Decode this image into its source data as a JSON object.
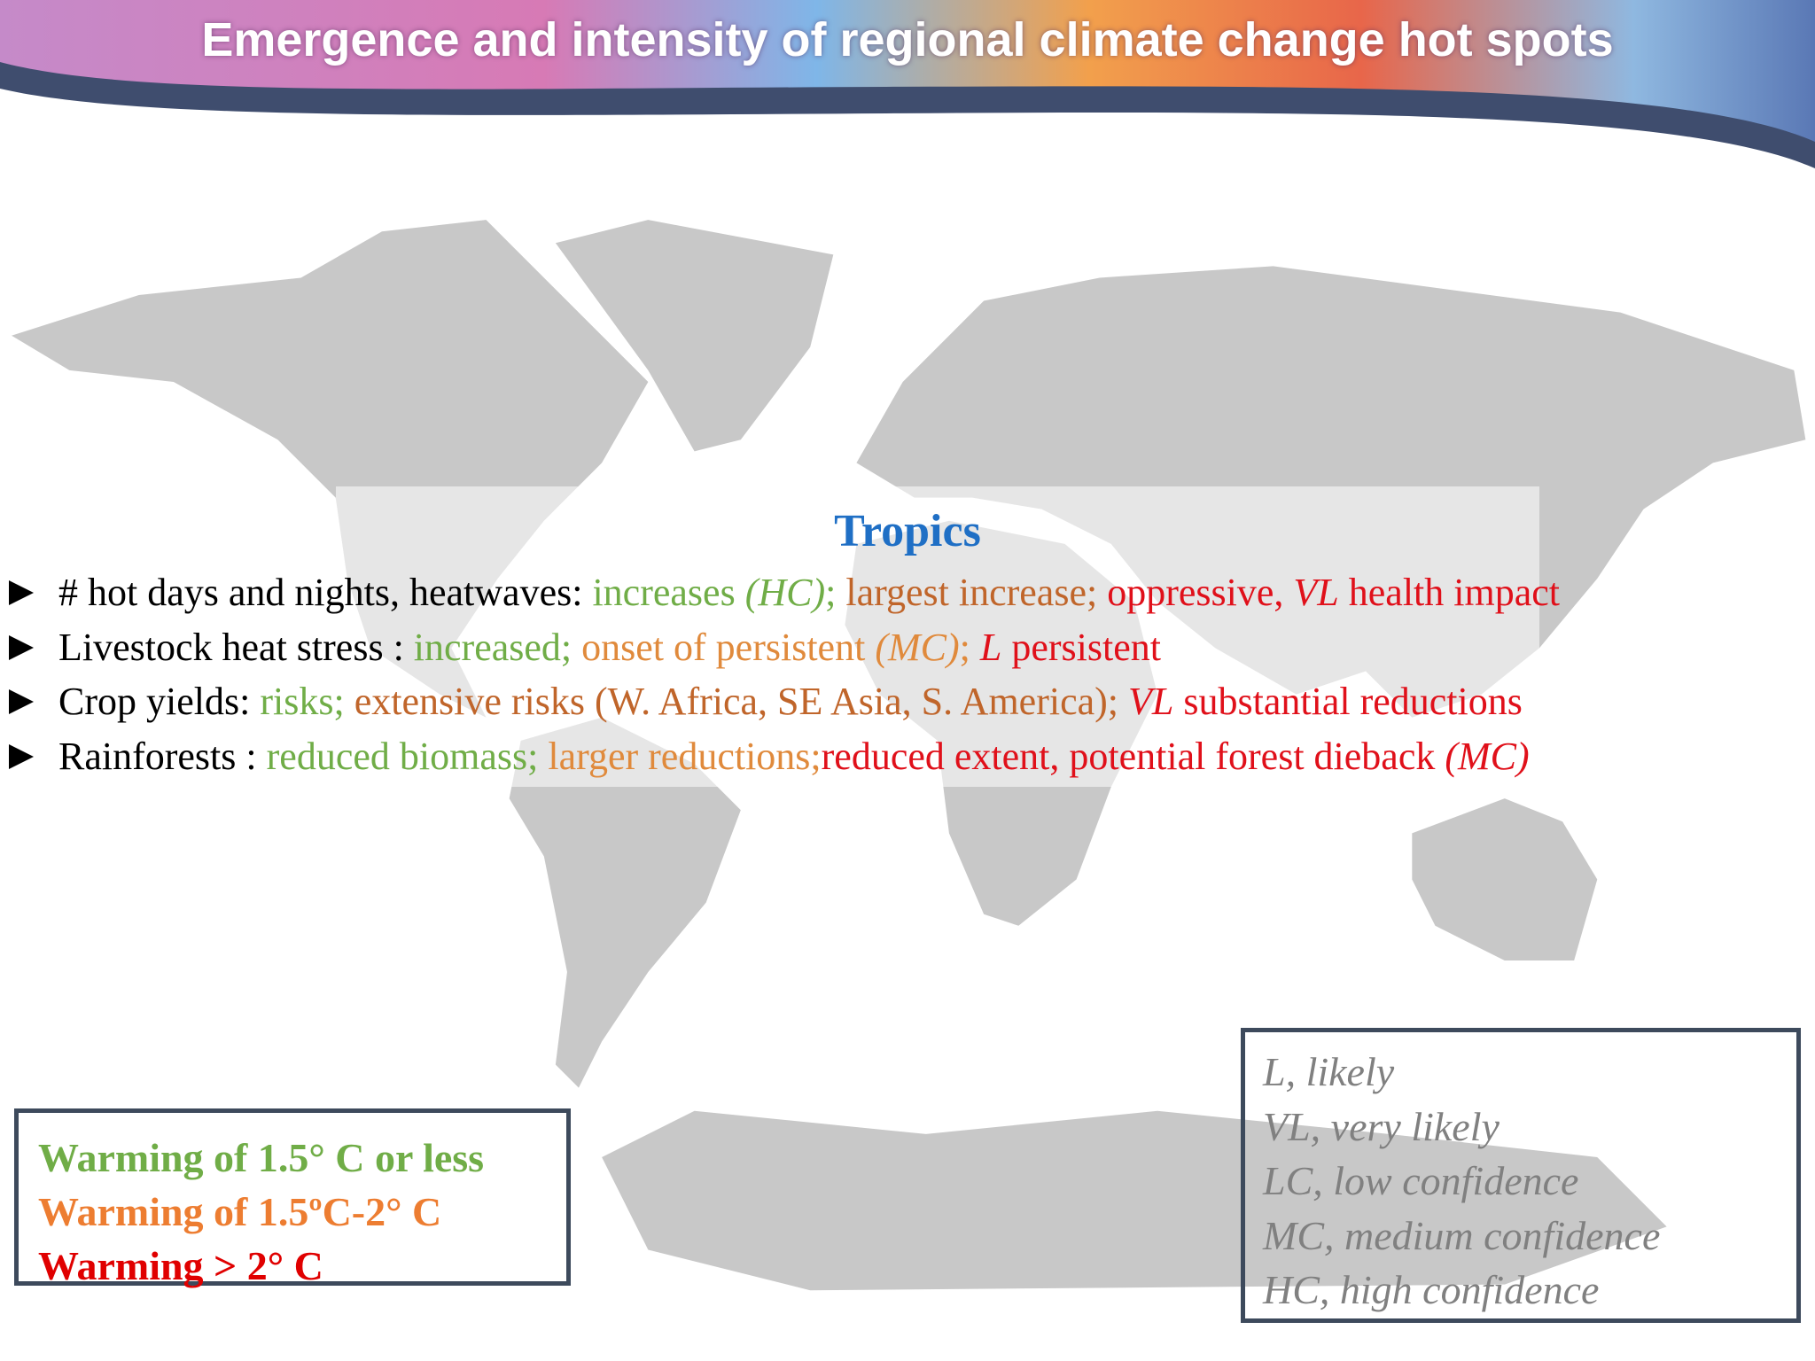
{
  "header": {
    "title": "Emergence and intensity of regional climate change hot spots"
  },
  "section": {
    "title": "Tropics",
    "title_color": "#1f6fc5",
    "bullets": [
      {
        "segments": [
          {
            "text": "# hot days and nights, heatwaves: ",
            "color": "#000000"
          },
          {
            "text": "increases ",
            "color": "#70ad47"
          },
          {
            "text": "(HC)",
            "color": "#70ad47",
            "italic": true
          },
          {
            "text": "; ",
            "color": "#70ad47"
          },
          {
            "text": "largest increase; ",
            "color": "#c0652a"
          },
          {
            "text": "oppressive, ",
            "color": "#e0101a"
          },
          {
            "text": "VL",
            "color": "#e0101a",
            "italic": true
          },
          {
            "text": " health impact",
            "color": "#e0101a"
          }
        ]
      },
      {
        "segments": [
          {
            "text": "Livestock heat stress : ",
            "color": "#000000"
          },
          {
            "text": "increased; ",
            "color": "#70ad47"
          },
          {
            "text": "onset of persistent ",
            "color": "#e08a3c"
          },
          {
            "text": "(MC)",
            "color": "#e08a3c",
            "italic": true
          },
          {
            "text": "; ",
            "color": "#e08a3c"
          },
          {
            "text": "L",
            "color": "#e0101a",
            "italic": true
          },
          {
            "text": " persistent",
            "color": "#e0101a"
          }
        ]
      },
      {
        "segments": [
          {
            "text": "Crop yields: ",
            "color": "#000000"
          },
          {
            "text": "risks; ",
            "color": "#70ad47"
          },
          {
            "text": "extensive risks (W. Africa, SE Asia, S. America); ",
            "color": "#c0652a"
          },
          {
            "text": "VL",
            "color": "#e0101a",
            "italic": true
          },
          {
            "text": " substantial reductions",
            "color": "#e0101a"
          }
        ]
      },
      {
        "segments": [
          {
            "text": "Rainforests : ",
            "color": "#000000"
          },
          {
            "text": "reduced biomass; ",
            "color": "#70ad47"
          },
          {
            "text": "larger reductions;",
            "color": "#e08a3c"
          },
          {
            "text": "reduced extent, potential forest dieback ",
            "color": "#e0101a"
          },
          {
            "text": "(MC)",
            "color": "#e0101a",
            "italic": true
          }
        ]
      }
    ]
  },
  "warming_legend": {
    "items": [
      {
        "text": "Warming of 1.5° C or less",
        "color": "#70ad47"
      },
      {
        "text": "Warming of 1.5ºC-2° C",
        "color": "#ed7d31"
      },
      {
        "text": "Warming > 2° C",
        "color": "#e00000"
      }
    ]
  },
  "likelihood_legend": {
    "items": [
      "L, likely",
      "VL, very likely",
      "LC, low confidence",
      "MC, medium confidence",
      "HC, high confidence"
    ]
  }
}
